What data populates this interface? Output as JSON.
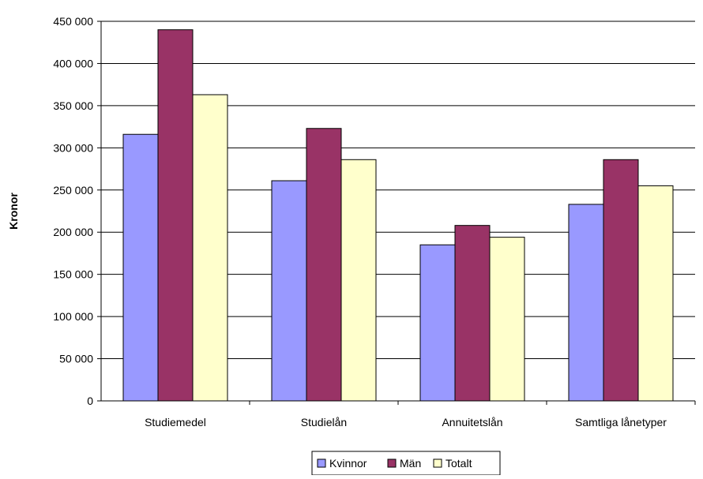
{
  "chart_data": {
    "type": "bar",
    "title": "",
    "xlabel": "",
    "ylabel": "Kronor",
    "ylim": [
      0,
      450000
    ],
    "y_ticks": [
      0,
      50000,
      100000,
      150000,
      200000,
      250000,
      300000,
      350000,
      400000,
      450000
    ],
    "y_tick_labels": [
      "0",
      "50 000",
      "100 000",
      "150 000",
      "200 000",
      "250 000",
      "300 000",
      "350 000",
      "400 000",
      "450 000"
    ],
    "grid": true,
    "legend_position": "bottom",
    "categories": [
      "Studiemedel",
      "Studielån",
      "Annuitetslån",
      "Samtliga lånetyper"
    ],
    "series": [
      {
        "name": "Kvinnor",
        "color": "#9999ff",
        "values": [
          316000,
          261000,
          185000,
          233000
        ]
      },
      {
        "name": "Män",
        "color": "#993366",
        "values": [
          440000,
          323000,
          208000,
          286000
        ]
      },
      {
        "name": "Totalt",
        "color": "#ffffcc",
        "values": [
          363000,
          286000,
          194000,
          255000
        ]
      }
    ]
  }
}
